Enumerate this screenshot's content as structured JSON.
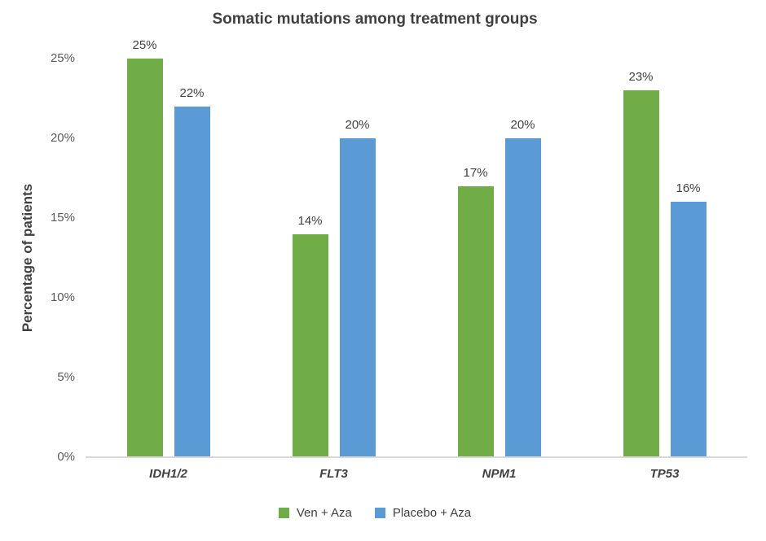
{
  "chart_data": {
    "type": "bar",
    "title": "Somatic mutations among treatment groups",
    "xlabel": "",
    "ylabel": "Percentage of patients",
    "categories": [
      "IDH1/2",
      "FLT3",
      "NPM1",
      "TP53"
    ],
    "series": [
      {
        "name": "Ven + Aza",
        "color": "#70AD47",
        "values": [
          25,
          14,
          17,
          23
        ]
      },
      {
        "name": "Placebo + Aza",
        "color": "#5B9BD5",
        "values": [
          22,
          20,
          20,
          16
        ]
      }
    ],
    "value_suffix": "%",
    "data_labels": [
      "25%",
      "14%",
      "17%",
      "23%",
      "22%",
      "20%",
      "20%",
      "16%"
    ],
    "ytick_labels": [
      "0%",
      "5%",
      "10%",
      "15%",
      "20%",
      "25%"
    ],
    "ytick_values": [
      0,
      5,
      10,
      15,
      20,
      25
    ],
    "ylim": [
      0,
      25
    ],
    "grid": false,
    "legend_position": "bottom",
    "colors": {
      "title_text": "#404040",
      "tick_text": "#595959",
      "axis_line": "#d9d9d9",
      "background": "#ffffff"
    }
  }
}
